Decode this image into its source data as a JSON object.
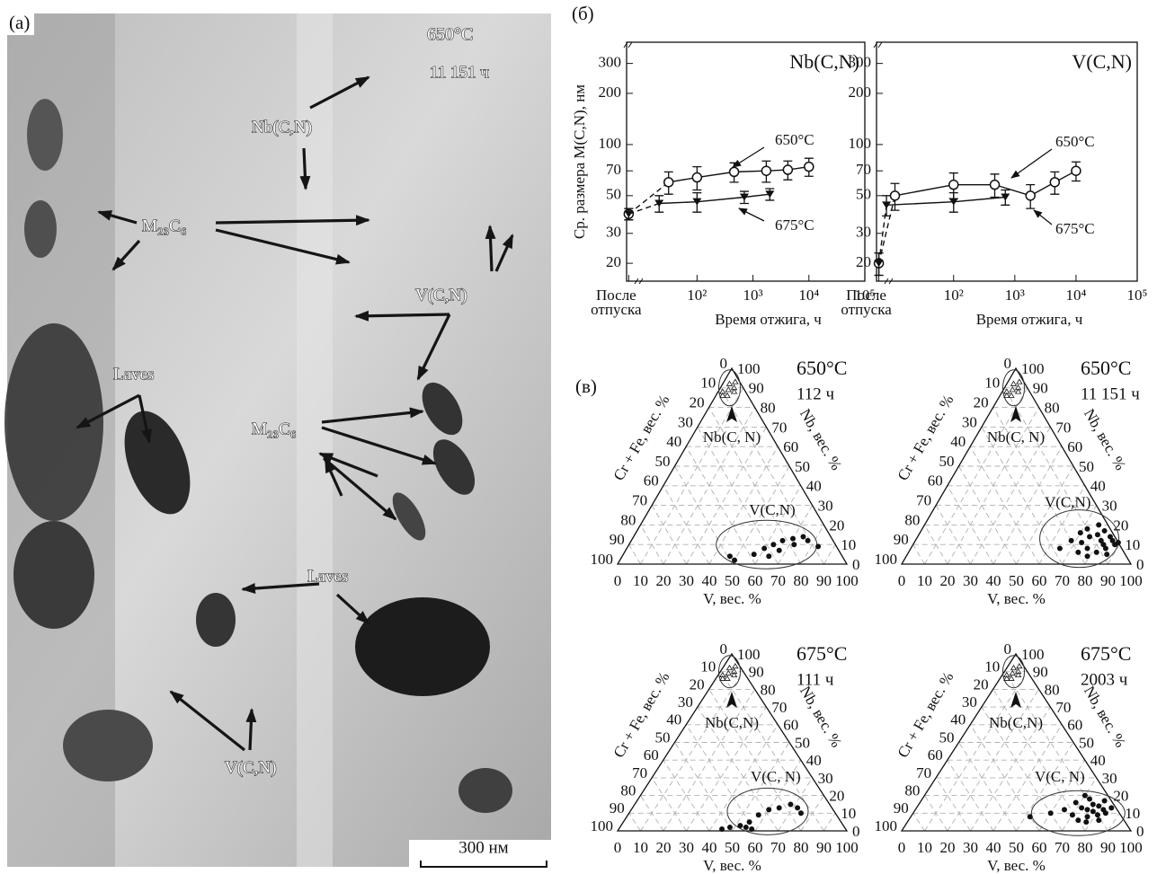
{
  "micrograph": {
    "panel_label": "(a)",
    "temperature": "650°C",
    "time": "11 151 ч",
    "annotations": [
      "Nb(C,N)",
      "M₂₃C₆",
      "V(C,N)",
      "Laves",
      "M₂₃C₆",
      "Laves",
      "V(C,N)"
    ],
    "scale_bar": "300 нм"
  },
  "plots_label": "(б)",
  "ternary_label": "(в)",
  "chart_data": [
    {
      "type": "line",
      "title": "Nb(C,N)",
      "ylabel": "Ср. размера M(C,N), нм",
      "xlabel": "Время отжига, ч",
      "log_x": true,
      "log_y": true,
      "xlim": [
        5.5,
        100000
      ],
      "ylim": [
        15.7,
        400
      ],
      "xticks": [
        {
          "value": 6,
          "label": "После отпуска"
        },
        {
          "value": 100,
          "label": "10²"
        },
        {
          "value": 1000,
          "label": "10³"
        },
        {
          "value": 10000,
          "label": "10⁴"
        },
        {
          "value": 100000,
          "label": "10⁵"
        }
      ],
      "yticks": [
        20,
        30,
        50,
        70,
        100,
        200,
        300
      ],
      "series": [
        {
          "name": "650°C",
          "color": "#111111",
          "marker": "circle-open",
          "dashed_start": true,
          "x": [
            6,
            31,
            100,
            460,
            1730,
            4200,
            10000
          ],
          "values": [
            39,
            60,
            64,
            69,
            70,
            71,
            74
          ],
          "errors": [
            3,
            9,
            10,
            9,
            10,
            9,
            9
          ]
        },
        {
          "name": "675°C",
          "color": "#111111",
          "marker": "triangle-down-filled",
          "dashed_start": true,
          "x": [
            6,
            21,
            100,
            700,
            2000
          ],
          "values": [
            39,
            45,
            46,
            49,
            51
          ],
          "errors": [
            3,
            5,
            6,
            4,
            4
          ]
        }
      ]
    },
    {
      "type": "line",
      "title": "V(C,N)",
      "xlabel": "Время отжига, ч",
      "log_x": true,
      "log_y": true,
      "xlim": [
        5.5,
        100000
      ],
      "ylim": [
        15.7,
        400
      ],
      "xticks": [
        {
          "value": 6,
          "label": "После отпуска"
        },
        {
          "value": 100,
          "label": "10²"
        },
        {
          "value": 1000,
          "label": "10³"
        },
        {
          "value": 10000,
          "label": "10⁴"
        },
        {
          "value": 100000,
          "label": "10⁵"
        }
      ],
      "yticks": [
        20,
        30,
        50,
        70,
        100,
        200,
        300
      ],
      "series": [
        {
          "name": "650°C",
          "color": "#111111",
          "marker": "circle-open",
          "dashed_start": true,
          "x": [
            6,
            11,
            100,
            470,
            1800,
            4500,
            10000
          ],
          "values": [
            20,
            50,
            58,
            58,
            50,
            60,
            70
          ],
          "errors": [
            3,
            9,
            10,
            9,
            8,
            9,
            9
          ]
        },
        {
          "name": "675°C",
          "color": "#111111",
          "marker": "triangle-down-filled",
          "dashed_start": true,
          "x": [
            6,
            8,
            100,
            700
          ],
          "values": [
            20,
            44,
            46,
            49
          ],
          "errors": [
            3,
            6,
            6,
            5
          ]
        }
      ]
    },
    {
      "type": "ternary",
      "temperature": "650°C",
      "time": "112 ч",
      "left_label": "Cr + Fe, вес. %",
      "right_label": "Nb, вес. %",
      "bottom_label": "V, вес. %",
      "ticks": [
        0,
        10,
        20,
        30,
        40,
        50,
        60,
        70,
        80,
        90,
        100
      ],
      "grid": true,
      "series": [
        {
          "name": "Nb(C, N)",
          "marker": "triangle-open",
          "v": [
            3,
            5,
            4,
            6,
            2,
            7,
            5,
            3
          ],
          "nb": [
            92,
            93,
            89,
            90,
            88,
            88,
            86,
            86
          ]
        },
        {
          "name": "V(C,N)",
          "marker": "dot",
          "v": [
            47,
            50,
            57,
            60,
            63,
            66,
            67,
            70,
            72,
            74,
            77,
            83,
            64
          ],
          "nb": [
            4,
            2,
            5,
            8,
            10,
            12,
            7,
            13,
            10,
            14,
            12,
            9,
            4
          ]
        }
      ]
    },
    {
      "type": "ternary",
      "temperature": "650°C",
      "time": "11 151 ч",
      "left_label": "Cr + Fe, вес. %",
      "right_label": "Nb, вес. %",
      "bottom_label": "V, вес. %",
      "ticks": [
        0,
        10,
        20,
        30,
        40,
        50,
        60,
        70,
        80,
        90,
        100
      ],
      "grid": true,
      "series": [
        {
          "name": "Nb(C, N)",
          "marker": "triangle-open",
          "v": [
            3,
            5,
            4,
            6,
            2,
            7,
            5,
            3
          ],
          "nb": [
            92,
            93,
            89,
            90,
            88,
            88,
            86,
            86
          ]
        },
        {
          "name": "V(C,N)",
          "marker": "dot",
          "v": [
            65,
            68,
            70,
            72,
            73,
            75,
            76,
            77,
            78,
            80,
            81,
            82,
            83,
            84,
            85,
            86,
            87,
            88,
            89,
            74,
            79
          ],
          "nb": [
            8,
            12,
            16,
            18,
            11,
            14,
            20,
            8,
            15,
            17,
            12,
            6,
            10,
            14,
            8,
            12,
            5,
            10,
            11,
            6,
            4
          ]
        }
      ]
    },
    {
      "type": "ternary",
      "temperature": "675°C",
      "time": "111 ч",
      "left_label": "Cr + Fe, вес. %",
      "right_label": "Nb, вес. %",
      "bottom_label": "V, вес. %",
      "ticks": [
        0,
        10,
        20,
        30,
        40,
        50,
        60,
        70,
        80,
        90,
        100
      ],
      "grid": true,
      "series": [
        {
          "name": "Nb(C,N)",
          "marker": "triangle-open",
          "v": [
            3,
            5,
            4,
            6,
            2,
            7,
            5,
            3
          ],
          "nb": [
            92,
            93,
            89,
            90,
            88,
            88,
            86,
            86
          ]
        },
        {
          "name": "V(C, N)",
          "marker": "dot",
          "v": [
            45,
            48,
            52,
            55,
            57,
            58,
            60,
            64,
            68,
            72,
            75,
            55
          ],
          "nb": [
            1,
            2,
            3,
            5,
            9,
            1,
            12,
            13,
            15,
            13,
            10,
            2
          ]
        }
      ]
    },
    {
      "type": "ternary",
      "temperature": "675°C",
      "time": "2003 ч",
      "left_label": "Cr + Fe, вес. %",
      "right_label": "Nb, вес. %",
      "bottom_label": "V, вес. %",
      "ticks": [
        0,
        10,
        20,
        30,
        40,
        50,
        60,
        70,
        80,
        90,
        100
      ],
      "grid": true,
      "series": [
        {
          "name": "Nb(C,N)",
          "marker": "triangle-open",
          "v": [
            3,
            5,
            4,
            6,
            2,
            7,
            5,
            3
          ],
          "nb": [
            92,
            93,
            89,
            90,
            88,
            88,
            86,
            86
          ]
        },
        {
          "name": "V(C, N)",
          "marker": "dot",
          "v": [
            52,
            60,
            65,
            68,
            70,
            72,
            73,
            74,
            75,
            76,
            77,
            78,
            79,
            80,
            81,
            82,
            83,
            84,
            85,
            78,
            70
          ],
          "nb": [
            8,
            10,
            12,
            16,
            9,
            13,
            18,
            6,
            12,
            15,
            8,
            11,
            14,
            17,
            9,
            12,
            6,
            10,
            13,
            5,
            20
          ]
        }
      ]
    }
  ]
}
